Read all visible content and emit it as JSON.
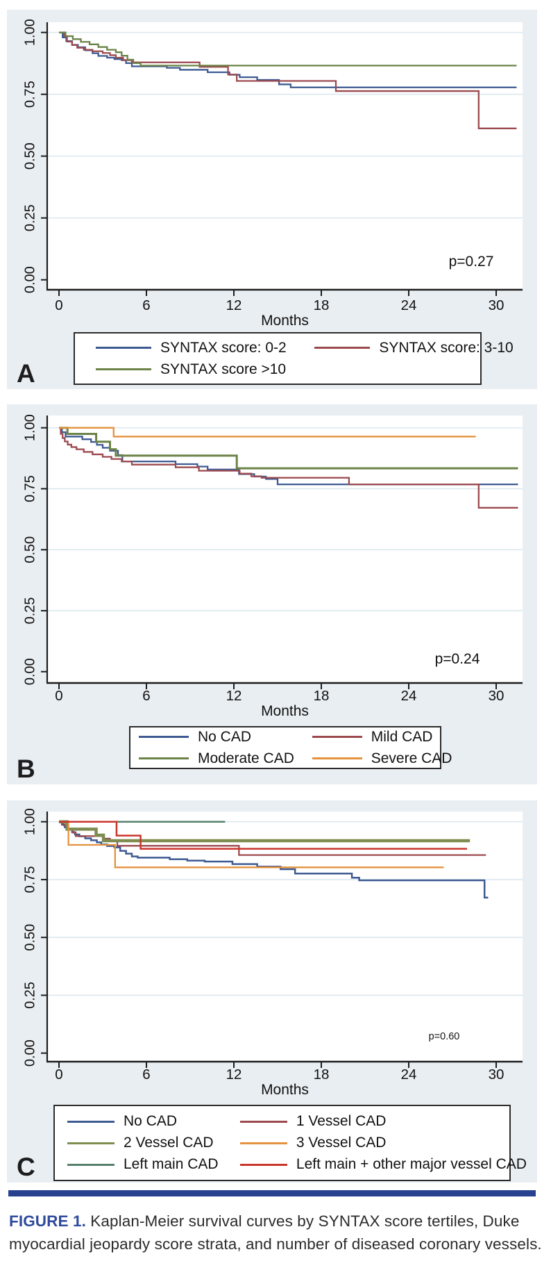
{
  "figure": {
    "caption_prefix": "FIGURE 1.",
    "caption_text": "Kaplan-Meier survival curves by SYNTAX score tertiles, Duke myocardial jeopardy score strata, and number of diseased coronary vessels."
  },
  "colors": {
    "panel_background": "#e9eef2",
    "plot_background": "#ffffff",
    "gridline": "#dce8ee",
    "axis": "#1c1c1c",
    "navy": "#3d5a92",
    "maroon": "#9c494e",
    "green": "#6b8347",
    "orange": "#e5923d",
    "olive": "#7e8c4f",
    "teal": "#56806b",
    "red": "#ca352c",
    "divider_blue": "#27418f",
    "caption_blue": "#2e4a9c"
  },
  "chart_data": [
    {
      "type": "line",
      "panel_label": "A",
      "p_value": "p=0.27",
      "xlabel": "Months",
      "x_ticks": [
        0,
        6,
        12,
        18,
        24,
        30
      ],
      "y_ticks": [
        {
          "v": 0,
          "label": "0.00"
        },
        {
          "v": 0.25,
          "label": "0.25"
        },
        {
          "v": 0.5,
          "label": "0.50"
        },
        {
          "v": 0.75,
          "label": "0.75"
        },
        {
          "v": 1,
          "label": "1.00"
        }
      ],
      "xlim": [
        0,
        32
      ],
      "ylim": [
        0,
        1.05
      ],
      "grid": true,
      "legend_position": "below",
      "series": [
        {
          "name": "SYNTAX score: 0-2",
          "color": "#3d5a92",
          "width": 2.3,
          "steps": [
            [
              0,
              1.0
            ],
            [
              0.25,
              0.98
            ],
            [
              0.5,
              0.965
            ],
            [
              0.9,
              0.95
            ],
            [
              1.3,
              0.94
            ],
            [
              1.8,
              0.928
            ],
            [
              2.3,
              0.916
            ],
            [
              2.7,
              0.905
            ],
            [
              3.3,
              0.898
            ],
            [
              3.8,
              0.892
            ],
            [
              4.3,
              0.888
            ],
            [
              4.6,
              0.876
            ],
            [
              5.0,
              0.863
            ],
            [
              7.4,
              0.857
            ],
            [
              8.3,
              0.849
            ],
            [
              10.2,
              0.839
            ],
            [
              11.7,
              0.829
            ],
            [
              12.4,
              0.819
            ],
            [
              13.6,
              0.808
            ],
            [
              15.1,
              0.79
            ],
            [
              15.9,
              0.778
            ]
          ],
          "end": 31.4
        },
        {
          "name": "SYNTAX score: 3-10",
          "color": "#9c494e",
          "width": 2.3,
          "steps": [
            [
              0,
              1.0
            ],
            [
              0.35,
              0.985
            ],
            [
              0.55,
              0.963
            ],
            [
              0.9,
              0.949
            ],
            [
              1.25,
              0.938
            ],
            [
              1.7,
              0.93
            ],
            [
              2.3,
              0.924
            ],
            [
              3.0,
              0.917
            ],
            [
              3.5,
              0.908
            ],
            [
              3.9,
              0.898
            ],
            [
              4.4,
              0.888
            ],
            [
              5.0,
              0.879
            ],
            [
              9.65,
              0.861
            ],
            [
              11.6,
              0.83
            ],
            [
              12.2,
              0.804
            ],
            [
              19.0,
              0.763
            ],
            [
              28.8,
              0.612
            ]
          ],
          "end": 31.4
        },
        {
          "name": "SYNTAX score >10",
          "color": "#6b8347",
          "width": 2.3,
          "steps": [
            [
              0,
              1.0
            ],
            [
              0.45,
              0.985
            ],
            [
              0.95,
              0.973
            ],
            [
              1.5,
              0.962
            ],
            [
              2.1,
              0.952
            ],
            [
              2.7,
              0.941
            ],
            [
              3.3,
              0.93
            ],
            [
              3.9,
              0.92
            ],
            [
              4.3,
              0.906
            ],
            [
              4.7,
              0.89
            ],
            [
              5.1,
              0.876
            ],
            [
              5.6,
              0.866
            ]
          ],
          "end": 31.4
        }
      ]
    },
    {
      "type": "line",
      "panel_label": "B",
      "p_value": "p=0.24",
      "xlabel": "Months",
      "x_ticks": [
        0,
        6,
        12,
        18,
        24,
        30
      ],
      "y_ticks": [
        {
          "v": 0,
          "label": "0.00"
        },
        {
          "v": 0.25,
          "label": "0.25"
        },
        {
          "v": 0.5,
          "label": "0.50"
        },
        {
          "v": 0.75,
          "label": "0.75"
        },
        {
          "v": 1,
          "label": "1.00"
        }
      ],
      "xlim": [
        0,
        32
      ],
      "ylim": [
        0,
        1.05
      ],
      "grid": true,
      "legend_position": "below",
      "series": [
        {
          "name": "No CAD",
          "color": "#3d5a92",
          "width": 2.3,
          "steps": [
            [
              0,
              1.0
            ],
            [
              0.2,
              0.982
            ],
            [
              0.45,
              0.964
            ],
            [
              1.6,
              0.953
            ],
            [
              2.2,
              0.942
            ],
            [
              2.6,
              0.93
            ],
            [
              3.0,
              0.918
            ],
            [
              3.5,
              0.906
            ],
            [
              4.05,
              0.888
            ],
            [
              4.35,
              0.862
            ],
            [
              8.0,
              0.851
            ],
            [
              9.5,
              0.841
            ],
            [
              10.2,
              0.829
            ],
            [
              12.35,
              0.81
            ],
            [
              13.4,
              0.8
            ],
            [
              14.2,
              0.79
            ],
            [
              15.0,
              0.768
            ]
          ],
          "end": 31.5
        },
        {
          "name": "Mild CAD",
          "color": "#9c494e",
          "width": 2.3,
          "steps": [
            [
              0,
              1.0
            ],
            [
              0.12,
              0.975
            ],
            [
              0.25,
              0.958
            ],
            [
              0.4,
              0.944
            ],
            [
              0.6,
              0.931
            ],
            [
              0.85,
              0.921
            ],
            [
              1.2,
              0.912
            ],
            [
              1.7,
              0.901
            ],
            [
              2.3,
              0.891
            ],
            [
              3.0,
              0.881
            ],
            [
              3.6,
              0.872
            ],
            [
              4.3,
              0.862
            ],
            [
              5.0,
              0.849
            ],
            [
              8.0,
              0.838
            ],
            [
              9.6,
              0.824
            ],
            [
              12.4,
              0.812
            ],
            [
              13.2,
              0.801
            ],
            [
              13.9,
              0.795
            ],
            [
              19.9,
              0.768
            ],
            [
              28.8,
              0.672
            ]
          ],
          "end": 31.5
        },
        {
          "name": "Moderate CAD",
          "color": "#6b8347",
          "width": 3,
          "steps": [
            [
              0,
              1.0
            ],
            [
              0.58,
              0.975
            ],
            [
              2.55,
              0.943
            ],
            [
              3.5,
              0.912
            ],
            [
              3.9,
              0.886
            ],
            [
              12.2,
              0.834
            ]
          ],
          "end": 31.5
        },
        {
          "name": "Severe CAD",
          "color": "#e5923d",
          "width": 2.3,
          "steps": [
            [
              0,
              1.0
            ],
            [
              3.75,
              0.964
            ]
          ],
          "end": 28.6
        }
      ]
    },
    {
      "type": "line",
      "panel_label": "C",
      "p_value": "p=0.60",
      "xlabel": "Months",
      "x_ticks": [
        0,
        6,
        12,
        18,
        24,
        30
      ],
      "y_ticks": [
        {
          "v": 0,
          "label": "0.00"
        },
        {
          "v": 0.25,
          "label": "0.25"
        },
        {
          "v": 0.5,
          "label": "0.50"
        },
        {
          "v": 0.75,
          "label": "0.75"
        },
        {
          "v": 1,
          "label": "1.00"
        }
      ],
      "xlim": [
        0,
        32
      ],
      "ylim": [
        0,
        1.05
      ],
      "grid": true,
      "legend_position": "below",
      "series": [
        {
          "name": "No CAD",
          "color": "#3d5a92",
          "width": 2.5,
          "steps": [
            [
              0,
              1.0
            ],
            [
              0.2,
              0.988
            ],
            [
              0.4,
              0.976
            ],
            [
              0.6,
              0.966
            ],
            [
              0.9,
              0.955
            ],
            [
              1.1,
              0.945
            ],
            [
              1.4,
              0.937
            ],
            [
              1.8,
              0.928
            ],
            [
              2.2,
              0.92
            ],
            [
              2.6,
              0.911
            ],
            [
              2.9,
              0.902
            ],
            [
              3.3,
              0.895
            ],
            [
              3.8,
              0.889
            ],
            [
              4.2,
              0.874
            ],
            [
              4.6,
              0.862
            ],
            [
              5.0,
              0.85
            ],
            [
              5.4,
              0.845
            ],
            [
              7.6,
              0.838
            ],
            [
              8.8,
              0.832
            ],
            [
              10.0,
              0.828
            ],
            [
              11.9,
              0.817
            ],
            [
              13.6,
              0.806
            ],
            [
              15.2,
              0.795
            ],
            [
              16.2,
              0.776
            ],
            [
              20.1,
              0.758
            ],
            [
              20.6,
              0.747
            ],
            [
              29.2,
              0.672
            ]
          ],
          "end": 29.45
        },
        {
          "name": "1 Vessel CAD",
          "color": "#9c494e",
          "width": 2.3,
          "steps": [
            [
              0,
              1.0
            ],
            [
              0.3,
              0.985
            ],
            [
              0.6,
              0.969
            ],
            [
              0.95,
              0.953
            ],
            [
              1.15,
              0.938
            ],
            [
              3.05,
              0.927
            ],
            [
              3.5,
              0.916
            ],
            [
              4.0,
              0.896
            ],
            [
              12.35,
              0.856
            ]
          ],
          "end": 29.3
        },
        {
          "name": "2 Vessel CAD",
          "color": "#7e8c4f",
          "width": 4.5,
          "steps": [
            [
              0,
              1.0
            ],
            [
              0.55,
              0.968
            ],
            [
              2.55,
              0.942
            ],
            [
              3.05,
              0.918
            ]
          ],
          "end": 28.2
        },
        {
          "name": "3 Vessel CAD",
          "color": "#e5923d",
          "width": 2.3,
          "steps": [
            [
              0,
              1.0
            ],
            [
              0.65,
              0.9
            ],
            [
              3.85,
              0.803
            ]
          ],
          "end": 26.4
        },
        {
          "name": "Left main CAD",
          "color": "#56806b",
          "width": 2.5,
          "steps": [
            [
              0,
              1.0
            ]
          ],
          "end": 11.4
        },
        {
          "name": "Left main + other major vessel CAD",
          "color": "#ca352c",
          "width": 2.5,
          "steps": [
            [
              0,
              1.0
            ],
            [
              3.95,
              0.94
            ],
            [
              5.6,
              0.883
            ]
          ],
          "end": 28.0
        }
      ]
    }
  ]
}
